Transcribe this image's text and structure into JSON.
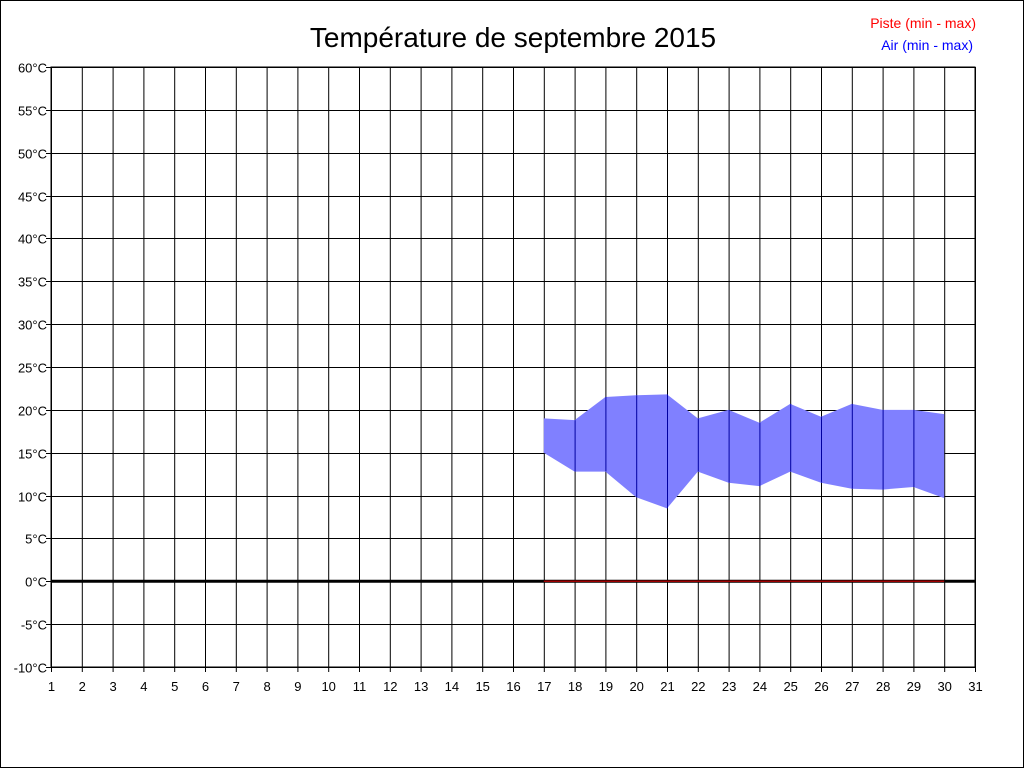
{
  "chart_data": {
    "type": "area",
    "title": "Température de septembre 2015",
    "xlabel": "",
    "ylabel": "",
    "xlim": [
      1,
      31
    ],
    "ylim": [
      -10,
      60
    ],
    "x_ticks": [
      "1",
      "2",
      "3",
      "4",
      "5",
      "6",
      "7",
      "8",
      "9",
      "10",
      "11",
      "12",
      "13",
      "14",
      "15",
      "16",
      "17",
      "18",
      "19",
      "20",
      "21",
      "22",
      "23",
      "24",
      "25",
      "26",
      "27",
      "28",
      "29",
      "30",
      "31"
    ],
    "y_ticks": [
      "-10°C",
      "-5°C",
      "0°C",
      "5°C",
      "10°C",
      "15°C",
      "20°C",
      "25°C",
      "30°C",
      "35°C",
      "40°C",
      "45°C",
      "50°C",
      "55°C",
      "60°C"
    ],
    "y_tick_values": [
      -10,
      -5,
      0,
      5,
      10,
      15,
      20,
      25,
      30,
      35,
      40,
      45,
      50,
      55,
      60
    ],
    "grid": true,
    "legend_placement": "top-right",
    "series": [
      {
        "name": "Piste (min - max)",
        "color": "#ff0000",
        "x": [
          17,
          18,
          19,
          20,
          21,
          22,
          23,
          24,
          25,
          26,
          27,
          28,
          29,
          30
        ],
        "min": [
          0,
          0,
          0,
          0,
          0,
          0,
          0,
          0,
          0,
          0,
          0,
          0,
          0,
          0
        ],
        "max": [
          0,
          0,
          0,
          0,
          0,
          0,
          0,
          0,
          0,
          0,
          0,
          0,
          0,
          0
        ]
      },
      {
        "name": "Air (min - max)",
        "color": "#0000ff",
        "fill": "#8080ff",
        "x": [
          17,
          18,
          19,
          20,
          21,
          22,
          23,
          24,
          25,
          26,
          27,
          28,
          29,
          30
        ],
        "min": [
          15,
          12.8,
          12.8,
          9.8,
          8.5,
          12.8,
          11.5,
          11.1,
          12.8,
          11.5,
          10.8,
          10.7,
          11,
          9.7
        ],
        "max": [
          19,
          18.8,
          21.5,
          21.7,
          21.8,
          19,
          20,
          18.5,
          20.7,
          19.2,
          20.7,
          20,
          20,
          19.5
        ]
      }
    ]
  }
}
